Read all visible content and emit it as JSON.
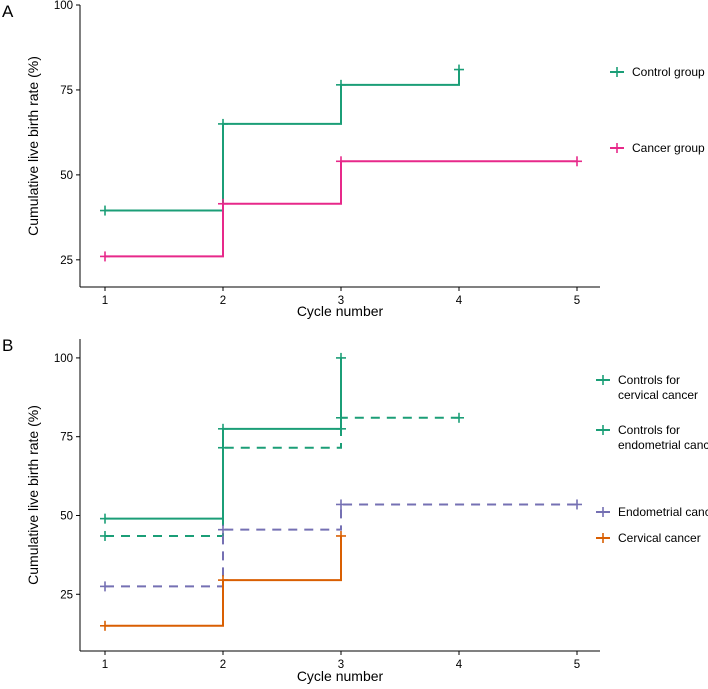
{
  "chart_data": [
    {
      "panel": "A",
      "type": "line",
      "step": true,
      "xlabel": "Cycle number",
      "ylabel": "Cumulative live birth rate (%)",
      "xlim": [
        1,
        5
      ],
      "ylim": [
        17,
        100
      ],
      "xticks": [
        1,
        2,
        3,
        4,
        5
      ],
      "yticks": [
        25,
        50,
        75,
        100
      ],
      "grid": false,
      "legend_position": "right",
      "series": [
        {
          "name": "Control group",
          "color": "#1b9e77",
          "dash": false,
          "x": [
            1,
            2,
            3,
            4
          ],
          "values": [
            39.5,
            65,
            76.5,
            81
          ]
        },
        {
          "name": "Cancer group",
          "color": "#e7298a",
          "dash": false,
          "x": [
            1,
            2,
            3,
            5
          ],
          "values": [
            26,
            41.5,
            54,
            54
          ]
        }
      ]
    },
    {
      "panel": "B",
      "type": "line",
      "step": true,
      "xlabel": "Cycle number",
      "ylabel": "Cumulative live birth rate (%)",
      "xlim": [
        1,
        5
      ],
      "ylim": [
        7,
        106
      ],
      "xticks": [
        1,
        2,
        3,
        4,
        5
      ],
      "yticks": [
        25,
        50,
        75,
        100
      ],
      "grid": false,
      "legend_position": "right",
      "series": [
        {
          "name": "Controls for cervical cancer",
          "legend_lines": [
            "Controls for",
            "cervical cancer"
          ],
          "color": "#1b9e77",
          "dash": false,
          "x": [
            1,
            2,
            3,
            3
          ],
          "values": [
            49,
            77.5,
            77.5,
            100
          ]
        },
        {
          "name": "Controls for endometrial cancer",
          "legend_lines": [
            "Controls for",
            "endometrial cancer"
          ],
          "color": "#1b9e77",
          "dash": true,
          "x": [
            1,
            2,
            3,
            4
          ],
          "values": [
            43.5,
            71.5,
            81,
            81
          ]
        },
        {
          "name": "Endometrial cancer",
          "legend_lines": [
            "Endometrial cancer"
          ],
          "color": "#7570b3",
          "dash": true,
          "x": [
            1,
            2,
            3,
            5
          ],
          "values": [
            27.5,
            45.5,
            53.5,
            53.5
          ]
        },
        {
          "name": "Cervical cancer",
          "legend_lines": [
            "Cervical cancer"
          ],
          "color": "#d95f02",
          "dash": false,
          "x": [
            1,
            2,
            3
          ],
          "values": [
            15,
            29.5,
            43.5
          ]
        }
      ]
    }
  ]
}
